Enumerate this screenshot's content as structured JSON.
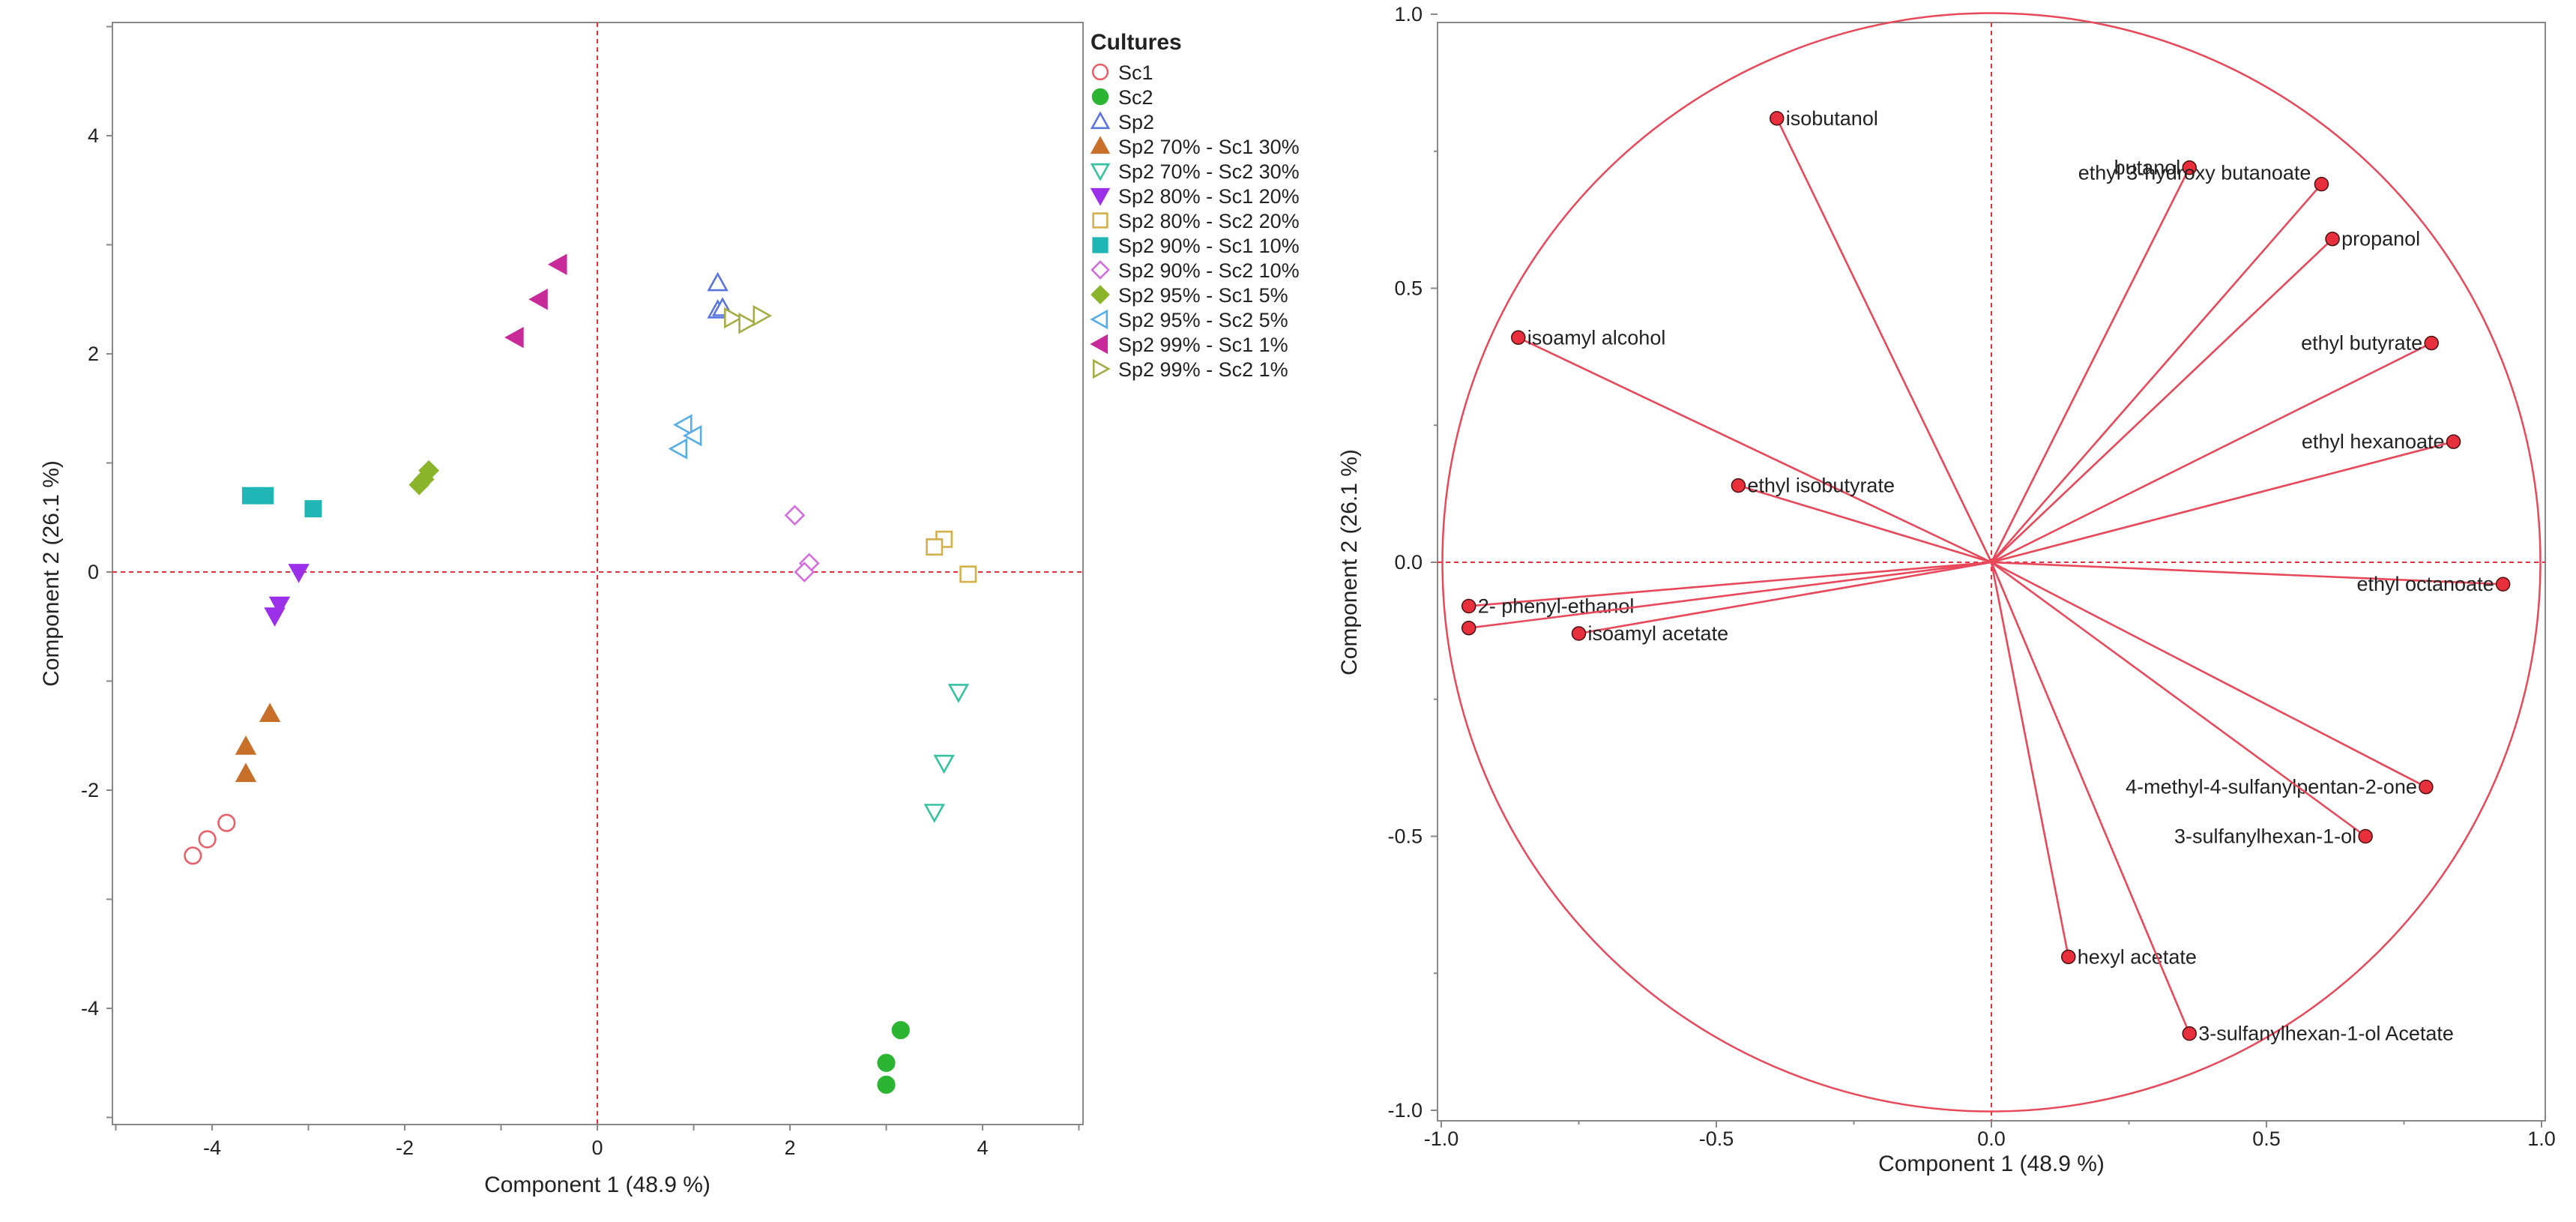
{
  "chart_data": [
    {
      "type": "scatter",
      "title": "",
      "xlabel": "Component 1  (48.9 %)",
      "ylabel": "Component 2  (26.1 %)",
      "xlim": [
        -5,
        5
      ],
      "ylim": [
        -5,
        5
      ],
      "xticks": [
        "-4",
        "-2",
        "0",
        "2",
        "4"
      ],
      "yticks": [
        "4",
        "2",
        "0",
        "-2",
        "-4"
      ],
      "legend_title": "Cultures",
      "legend_position": "top-right",
      "series": [
        {
          "name": "Sc1",
          "color": "#e8606a",
          "marker": "circle-open",
          "points": [
            [
              -4.2,
              -2.6
            ],
            [
              -4.05,
              -2.45
            ],
            [
              -3.85,
              -2.3
            ]
          ]
        },
        {
          "name": "Sc2",
          "color": "#2bb533",
          "marker": "circle-filled",
          "points": [
            [
              3.15,
              -4.2
            ],
            [
              3.0,
              -4.5
            ],
            [
              3.0,
              -4.7
            ]
          ]
        },
        {
          "name": "Sp2",
          "color": "#5a75e0",
          "marker": "triangle-up-open",
          "points": [
            [
              1.25,
              2.65
            ],
            [
              1.25,
              2.4
            ],
            [
              1.3,
              2.42
            ]
          ]
        },
        {
          "name": "Sp2 70% - Sc1 30%",
          "color": "#c8702a",
          "marker": "triangle-up-filled",
          "points": [
            [
              -3.4,
              -1.3
            ],
            [
              -3.65,
              -1.6
            ],
            [
              -3.65,
              -1.85
            ]
          ]
        },
        {
          "name": "Sp2 70% - Sc2 30%",
          "color": "#36c2a0",
          "marker": "triangle-down-open",
          "points": [
            [
              3.75,
              -1.1
            ],
            [
              3.6,
              -1.75
            ],
            [
              3.5,
              -2.2
            ]
          ]
        },
        {
          "name": "Sp2 80% - Sc1 20%",
          "color": "#9b30e8",
          "marker": "triangle-down-filled",
          "points": [
            [
              -3.1,
              0.0
            ],
            [
              -3.3,
              -0.3
            ],
            [
              -3.35,
              -0.4
            ]
          ]
        },
        {
          "name": "Sp2 80% - Sc2 20%",
          "color": "#d4b04a",
          "marker": "square-open",
          "points": [
            [
              3.6,
              0.3
            ],
            [
              3.5,
              0.23
            ],
            [
              3.85,
              -0.02
            ]
          ]
        },
        {
          "name": "Sp2 90% - Sc1 10%",
          "color": "#20b6b6",
          "marker": "square-filled",
          "points": [
            [
              -3.6,
              0.7
            ],
            [
              -3.45,
              0.7
            ],
            [
              -2.95,
              0.58
            ]
          ]
        },
        {
          "name": "Sp2 90% - Sc2 10%",
          "color": "#d46de0",
          "marker": "diamond-open",
          "points": [
            [
              2.05,
              0.52
            ],
            [
              2.2,
              0.08
            ],
            [
              2.15,
              0.0
            ]
          ]
        },
        {
          "name": "Sp2 95% - Sc1 5%",
          "color": "#8ab52a",
          "marker": "diamond-filled",
          "points": [
            [
              -1.75,
              0.93
            ],
            [
              -1.8,
              0.85
            ],
            [
              -1.85,
              0.8
            ]
          ]
        },
        {
          "name": "Sp2 95% - Sc2 5%",
          "color": "#55aee6",
          "marker": "triangle-left-open",
          "points": [
            [
              0.9,
              1.35
            ],
            [
              1.0,
              1.25
            ],
            [
              0.85,
              1.13
            ]
          ]
        },
        {
          "name": "Sp2 99% - Sc1 1%",
          "color": "#c82a9a",
          "marker": "triangle-left-filled",
          "points": [
            [
              -0.4,
              2.82
            ],
            [
              -0.6,
              2.5
            ],
            [
              -0.85,
              2.15
            ]
          ]
        },
        {
          "name": "Sp2 99% - Sc2 1%",
          "color": "#a6ad45",
          "marker": "triangle-right-open",
          "points": [
            [
              1.4,
              2.33
            ],
            [
              1.55,
              2.28
            ],
            [
              1.7,
              2.35
            ]
          ]
        }
      ]
    },
    {
      "type": "loading-plot",
      "title": "",
      "xlabel": "Component 1  (48.9 %)",
      "ylabel": "Component 2  (26.1 %)",
      "xlim": [
        -1.0,
        1.0
      ],
      "ylim": [
        -1.0,
        1.0
      ],
      "xticks": [
        "-1.0",
        "-0.5",
        "0.0",
        "0.5",
        "1.0"
      ],
      "yticks": [
        "1.0",
        "0.5",
        "0.0",
        "-0.5",
        "-1.0"
      ],
      "line_color": "#e8485a",
      "point_color": "#e8303c",
      "variables": [
        {
          "name": "isobutanol",
          "x": -0.39,
          "y": 0.81,
          "label_side": "right"
        },
        {
          "name": "butanol",
          "x": 0.36,
          "y": 0.72,
          "label_side": "left"
        },
        {
          "name": "ethyl 3-hydroxy butanoate",
          "x": 0.6,
          "y": 0.69,
          "label_side": "above-left"
        },
        {
          "name": "propanol",
          "x": 0.62,
          "y": 0.59,
          "label_side": "right"
        },
        {
          "name": "isoamyl alcohol",
          "x": -0.86,
          "y": 0.41,
          "label_side": "right"
        },
        {
          "name": "ethyl butyrate",
          "x": 0.8,
          "y": 0.4,
          "label_side": "left"
        },
        {
          "name": "ethyl hexanoate",
          "x": 0.84,
          "y": 0.22,
          "label_side": "left"
        },
        {
          "name": "ethyl isobutyrate",
          "x": -0.46,
          "y": 0.14,
          "label_side": "right"
        },
        {
          "name": "ethyl octanoate",
          "x": 0.93,
          "y": -0.04,
          "label_side": "left"
        },
        {
          "name": "2- phenyl-ethanol",
          "x": -0.95,
          "y": -0.08,
          "label_side": "right"
        },
        {
          "name": "isoamyl acetate",
          "x": -0.75,
          "y": -0.13,
          "label_side": "right"
        },
        {
          "name": "",
          "x": -0.95,
          "y": -0.12,
          "label_side": "none"
        },
        {
          "name": "4-methyl-4-sulfanylpentan-2-one",
          "x": 0.79,
          "y": -0.41,
          "label_side": "left"
        },
        {
          "name": "3-sulfanylhexan-1-ol",
          "x": 0.68,
          "y": -0.5,
          "label_side": "left"
        },
        {
          "name": "hexyl acetate",
          "x": 0.14,
          "y": -0.72,
          "label_side": "right"
        },
        {
          "name": "3-sulfanylhexan-1-ol Acetate",
          "x": 0.36,
          "y": -0.86,
          "label_side": "right"
        }
      ]
    }
  ]
}
